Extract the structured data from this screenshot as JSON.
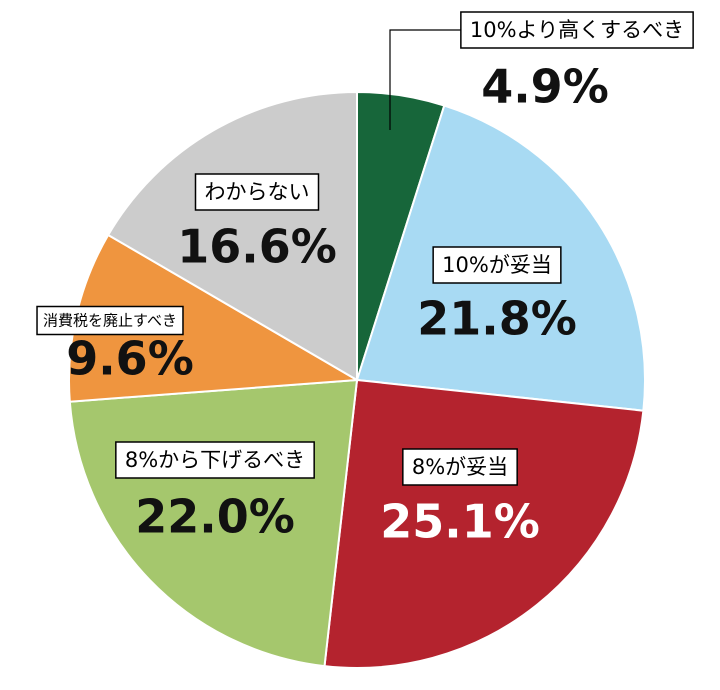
{
  "chart_data": {
    "type": "pie",
    "categories": [
      "10%より高くするべき",
      "10%が妥当",
      "8%が妥当",
      "8%から下げるべき",
      "消費税を廃止すべき",
      "わからない"
    ],
    "values": [
      4.9,
      21.8,
      25.1,
      22.0,
      9.6,
      16.6
    ],
    "value_labels": [
      "4.9%",
      "21.8%",
      "25.1%",
      "22.0%",
      "9.6%",
      "16.6%"
    ],
    "colors": [
      "#17663a",
      "#a8daf3",
      "#b4232e",
      "#a5c76d",
      "#ef953f",
      "#cccccc"
    ]
  }
}
